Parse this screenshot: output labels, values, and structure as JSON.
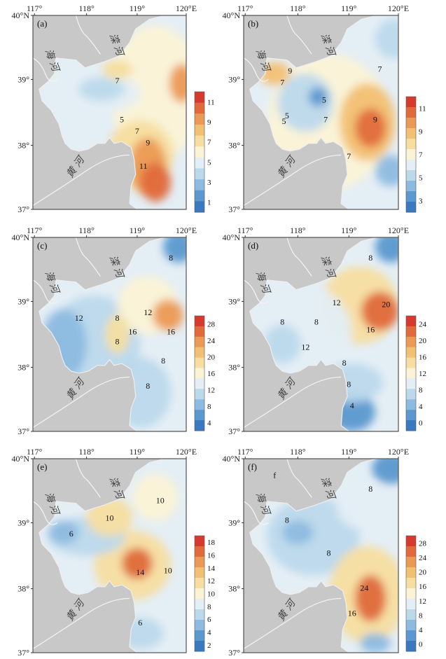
{
  "lon_ticks": [
    "117°",
    "118°",
    "119°",
    "120°E"
  ],
  "lat_ticks": [
    "40°N",
    "39°",
    "38°",
    "37°"
  ],
  "place_labels": {
    "luan_he": "滦 河",
    "hai_he": "海 河",
    "huang_he": "黄 河"
  },
  "colors": {
    "land": "#c8c8c8",
    "ramp": [
      "#3a78c0",
      "#5b98cf",
      "#8dbbe0",
      "#bcd9ec",
      "#e4eef5",
      "#fbf3d6",
      "#f7dea0",
      "#f2c072",
      "#eb9a55",
      "#e06a3c",
      "#d63a2f"
    ]
  },
  "panels": [
    {
      "label": "(a)",
      "contour_labels": [
        "7",
        "5",
        "7",
        "9",
        "11"
      ],
      "colorbar_ticks": [
        "11",
        "9",
        "7",
        "5",
        "3",
        "1"
      ]
    },
    {
      "label": "(b)",
      "contour_labels": [
        "9",
        "7",
        "5",
        "5",
        "7",
        "5",
        "7",
        "9",
        "7"
      ],
      "colorbar_ticks": [
        "11",
        "9",
        "7",
        "5",
        "3"
      ]
    },
    {
      "label": "(c)",
      "contour_labels": [
        "8",
        "12",
        "8",
        "16",
        "12",
        "16",
        "8",
        "8",
        "8"
      ],
      "colorbar_ticks": [
        "28",
        "24",
        "20",
        "16",
        "12",
        "8",
        "4"
      ]
    },
    {
      "label": "(d)",
      "contour_labels": [
        "8",
        "12",
        "20",
        "16",
        "8",
        "8",
        "12",
        "8",
        "8",
        "4"
      ],
      "colorbar_ticks": [
        "24",
        "20",
        "16",
        "12",
        "8",
        "4",
        "0"
      ]
    },
    {
      "label": "(e)",
      "contour_labels": [
        "10",
        "10",
        "6",
        "14",
        "10",
        "6"
      ],
      "colorbar_ticks": [
        "18",
        "16",
        "14",
        "12",
        "10",
        "8",
        "6",
        "4",
        "2"
      ]
    },
    {
      "label": "(f)",
      "contour_labels": [
        "f",
        "8",
        "8",
        "8",
        "24",
        "16"
      ],
      "colorbar_ticks": [
        "28",
        "24",
        "20",
        "16",
        "12",
        "8",
        "4",
        "0"
      ]
    }
  ]
}
